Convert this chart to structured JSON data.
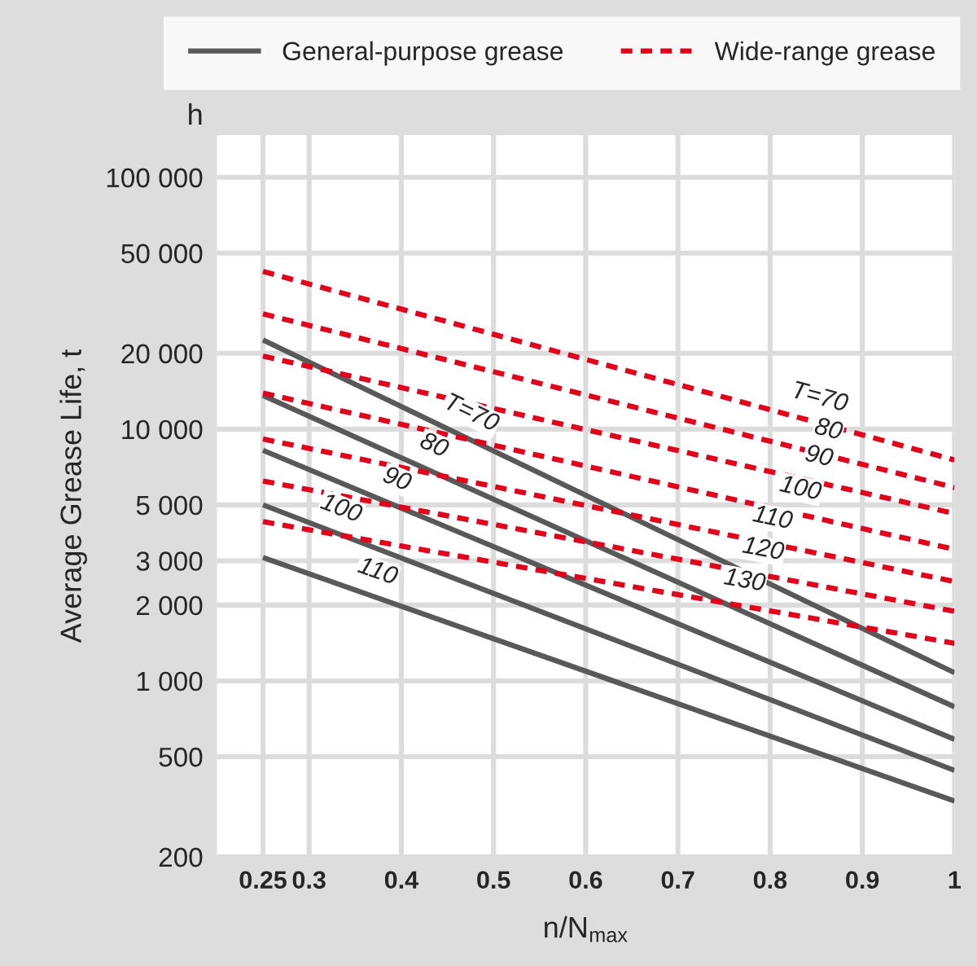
{
  "chart_data": {
    "type": "line",
    "xlabel": "n/N$_{max}$",
    "ylabel": "Average Grease Life, t",
    "annotations": [
      "h",
      {
        "text": "T=70",
        "x": 0.47,
        "y": 9250
      },
      {
        "text": "80",
        "x": 0.43,
        "y": 6870
      },
      {
        "text": "90",
        "x": 0.39,
        "y": 5030
      },
      {
        "text": "100",
        "x": 0.33,
        "y": 3850
      },
      {
        "text": "110",
        "x": 0.37,
        "y": 2160
      },
      {
        "text": "T=70",
        "x": 0.85,
        "y": 10600
      },
      {
        "text": "80",
        "x": 0.86,
        "y": 7890
      },
      {
        "text": "90",
        "x": 0.85,
        "y": 6170
      },
      {
        "text": "100",
        "x": 0.83,
        "y": 4600
      },
      {
        "text": "110",
        "x": 0.8,
        "y": 3510
      },
      {
        "text": "120",
        "x": 0.79,
        "y": 2640
      },
      {
        "text": "130",
        "x": 0.77,
        "y": 1980
      }
    ],
    "x": [
      0.25,
      1
    ],
    "series": [
      {
        "name": "General-purpose grease",
        "color": "#595959",
        "line_style": "solid",
        "values": [
          22600,
          1077
        ]
      },
      {
        "color": "#595959",
        "line_style": "solid",
        "values": [
          13600,
          789
        ]
      },
      {
        "color": "#595959",
        "line_style": "solid",
        "values": [
          8240,
          586
        ]
      },
      {
        "color": "#595959",
        "line_style": "solid",
        "values": [
          5000,
          441
        ]
      },
      {
        "color": "#595959",
        "line_style": "solid",
        "values": [
          3090,
          333
        ]
      },
      {
        "name": "Wide-range grease",
        "color": "#e2001a",
        "line_style": "dashed",
        "values": [
          42300,
          7540
        ]
      },
      {
        "color": "#e2001a",
        "line_style": "dashed",
        "values": [
          28700,
          5860
        ]
      },
      {
        "color": "#e2001a",
        "line_style": "dashed",
        "values": [
          19500,
          4620
        ]
      },
      {
        "color": "#e2001a",
        "line_style": "dashed",
        "values": [
          13900,
          3330
        ]
      },
      {
        "color": "#e2001a",
        "line_style": "dashed",
        "values": [
          9140,
          2480
        ]
      },
      {
        "color": "#e2001a",
        "line_style": "dashed",
        "values": [
          6220,
          1890
        ]
      },
      {
        "color": "#e2001a",
        "line_style": "dashed",
        "values": [
          4290,
          1410
        ]
      }
    ],
    "log": "y",
    "xlim": [
      0.2,
      1
    ],
    "ylim": [
      200,
      147000
    ],
    "xticks": [
      0.25,
      0.3,
      0.4,
      0.5,
      0.6,
      0.7,
      0.8,
      0.9,
      {
        "value": 1,
        "label": "1"
      }
    ],
    "yticks": [
      200,
      500,
      {
        "value": 1000,
        "label": "1 000"
      },
      {
        "value": 2000,
        "label": "2 000"
      },
      {
        "value": 3000,
        "label": "3 000"
      },
      {
        "value": 5000,
        "label": "5 000"
      },
      {
        "value": 10000,
        "label": "10 000"
      },
      {
        "value": 20000,
        "label": "20 000"
      },
      {
        "value": 50000,
        "label": "50 000"
      },
      {
        "value": 100000,
        "label": "100 000"
      }
    ],
    "grid": true,
    "legend": "top",
    "marker": "none"
  }
}
